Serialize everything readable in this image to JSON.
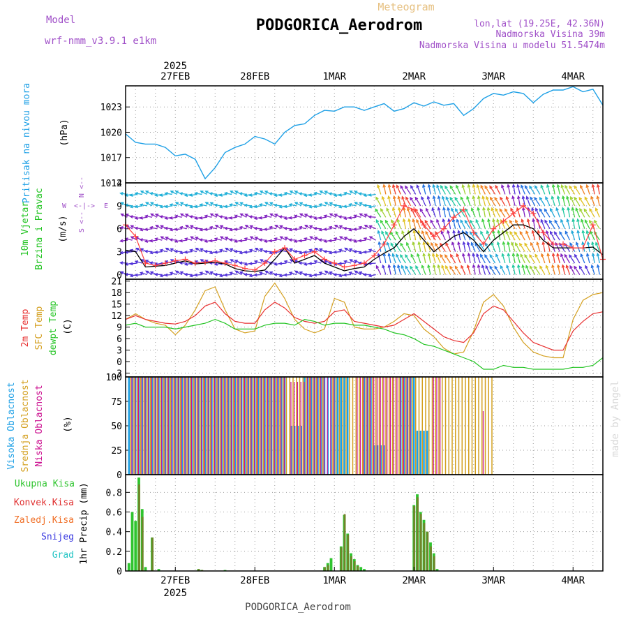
{
  "header": {
    "model_label": "Model",
    "model_name": "wrf-nmm_v3.9.1 e1km",
    "product": "Meteogram",
    "station": "PODGORICA_Aerodrom",
    "coords": "lon,lat (19.25E, 42.36N)",
    "elevation": "Nadmorska Visina 39m",
    "model_elevation": "Nadmorska Visina u modelu 51.5474m",
    "footer_station": "PODGORICA_Aerodrom",
    "watermark": "made by Angel"
  },
  "timeline": {
    "year": "2025",
    "date_labels": [
      "27FEB",
      "28FEB",
      "1MAR",
      "2MAR",
      "3MAR",
      "4MAR"
    ],
    "start_hour_offset": -15,
    "end_hour_offset": 129
  },
  "colors": {
    "pressure": "#1ea0e6",
    "wind_speed": "#ff4040",
    "gust": "#000000",
    "t2m": "#e83030",
    "sfc": "#d4a020",
    "dewpt": "#22c422",
    "high_cloud": "#1ea0e6",
    "mid_cloud": "#d4a020",
    "low_cloud": "#cc1090",
    "total_precip": "#2ec42e",
    "conv_precip": "#e03030",
    "frz_precip": "#f07028",
    "snow": "#3a3ae0",
    "hail": "#22c4c4"
  },
  "chart_data": [
    {
      "type": "line",
      "panel": "pressure",
      "ylabel": "Pritisak na nivou mora",
      "unit": "(hPa)",
      "ylim": [
        1014,
        1025.5
      ],
      "yticks": [
        1014,
        1017,
        1020,
        1023
      ],
      "grid": true,
      "x": [
        -15,
        -12,
        -9,
        -6,
        -3,
        0,
        3,
        6,
        9,
        12,
        15,
        18,
        21,
        24,
        27,
        30,
        33,
        36,
        39,
        42,
        45,
        48,
        51,
        54,
        57,
        60,
        63,
        66,
        69,
        72,
        75,
        78,
        81,
        84,
        87,
        90,
        93,
        96,
        99,
        102,
        105,
        108,
        111,
        114,
        117,
        120,
        123,
        126,
        129
      ],
      "series": [
        {
          "name": "Pritisak na nivou mora",
          "values": [
            1019.8,
            1018.8,
            1018.6,
            1018.6,
            1018.2,
            1017.2,
            1017.4,
            1016.8,
            1014.5,
            1015.8,
            1017.6,
            1018.2,
            1018.6,
            1019.5,
            1019.2,
            1018.6,
            1020.0,
            1020.8,
            1021.0,
            1022.0,
            1022.6,
            1022.5,
            1023.0,
            1023.0,
            1022.6,
            1023.0,
            1023.4,
            1022.5,
            1022.8,
            1023.5,
            1023.1,
            1023.6,
            1023.2,
            1023.4,
            1022.0,
            1022.8,
            1024.0,
            1024.6,
            1024.4,
            1024.8,
            1024.6,
            1023.5,
            1024.5,
            1025.0,
            1025.0,
            1025.4,
            1024.8,
            1025.1,
            1023.2
          ]
        }
      ]
    },
    {
      "type": "line",
      "panel": "wind",
      "ylabel": "10m Vjetar Brzina i Pravac",
      "unit": "(m/s)",
      "direction_legend": [
        "N",
        "W",
        "E",
        "S"
      ],
      "ylim": [
        -0.6,
        12
      ],
      "yticks": [
        0,
        3,
        6,
        9,
        12
      ],
      "grid": true,
      "x": [
        -15,
        -12,
        -9,
        -6,
        -3,
        0,
        3,
        6,
        9,
        12,
        15,
        18,
        21,
        24,
        27,
        30,
        33,
        36,
        39,
        42,
        45,
        48,
        51,
        54,
        57,
        60,
        63,
        66,
        69,
        72,
        75,
        78,
        81,
        84,
        87,
        90,
        93,
        96,
        99,
        102,
        105,
        108,
        111,
        114,
        117,
        120,
        123,
        126,
        129
      ],
      "series": [
        {
          "name": "speed",
          "values": [
            6.5,
            5.0,
            1.5,
            1.2,
            1.5,
            1.8,
            2.0,
            1.5,
            1.6,
            1.8,
            1.5,
            1.2,
            0.8,
            0.6,
            1.5,
            3.0,
            3.5,
            2.0,
            2.5,
            3.0,
            2.0,
            1.5,
            1.0,
            1.2,
            1.5,
            2.5,
            4.0,
            6.5,
            9.0,
            8.5,
            6.5,
            5.0,
            6.0,
            7.5,
            8.5,
            5.5,
            4.0,
            6.0,
            7.0,
            8.0,
            9.0,
            8.0,
            5.5,
            4.0,
            4.0,
            3.5,
            3.5,
            6.5,
            2.0
          ]
        },
        {
          "name": "gust",
          "values": [
            3.2,
            3.0,
            1.0,
            1.1,
            1.2,
            1.5,
            1.8,
            1.4,
            1.5,
            1.6,
            1.4,
            0.8,
            0.5,
            0.4,
            0.6,
            2.0,
            3.5,
            1.5,
            2.0,
            2.5,
            1.5,
            1.0,
            0.5,
            0.8,
            1.0,
            2.0,
            2.8,
            3.5,
            5.0,
            6.0,
            4.5,
            3.0,
            4.0,
            5.0,
            5.5,
            4.5,
            3.0,
            4.5,
            5.5,
            6.5,
            6.5,
            6.0,
            4.5,
            3.5,
            3.5,
            3.5,
            3.5,
            3.6,
            2.6
          ]
        }
      ]
    },
    {
      "type": "line",
      "panel": "temperature",
      "ylabel": "2m Temp / SFC Temp / dewpt Temp",
      "unit": "(C)",
      "ylim": [
        -4,
        21.5
      ],
      "yticks": [
        -3,
        0,
        3,
        6,
        9,
        12,
        15,
        18,
        21
      ],
      "grid": true,
      "x": [
        -15,
        -12,
        -9,
        -6,
        -3,
        0,
        3,
        6,
        9,
        12,
        15,
        18,
        21,
        24,
        27,
        30,
        33,
        36,
        39,
        42,
        45,
        48,
        51,
        54,
        57,
        60,
        63,
        66,
        69,
        72,
        75,
        78,
        81,
        84,
        87,
        90,
        93,
        96,
        99,
        102,
        105,
        108,
        111,
        114,
        117,
        120,
        123,
        126,
        129
      ],
      "series": [
        {
          "name": "2m Temp",
          "values": [
            11.0,
            12.0,
            11.0,
            10.5,
            10.0,
            9.8,
            10.5,
            12.0,
            14.5,
            15.5,
            12.5,
            10.5,
            10.0,
            10.0,
            13.5,
            15.5,
            14.0,
            11.5,
            10.5,
            10.0,
            10.5,
            13.0,
            13.5,
            10.5,
            10.0,
            9.5,
            9.0,
            9.5,
            11.0,
            12.5,
            10.5,
            8.5,
            6.5,
            5.5,
            5.0,
            7.5,
            12.5,
            14.5,
            13.5,
            10.5,
            7.5,
            5.0,
            4.0,
            3.0,
            3.0,
            8.0,
            10.5,
            12.5,
            13.0
          ]
        },
        {
          "name": "SFC Temp",
          "values": [
            11.0,
            12.5,
            11.0,
            10.0,
            9.5,
            7.0,
            9.5,
            13.5,
            18.5,
            19.5,
            13.5,
            8.5,
            7.5,
            8.0,
            17.0,
            20.5,
            16.5,
            11.0,
            8.5,
            7.5,
            8.5,
            16.5,
            15.5,
            9.0,
            8.5,
            8.5,
            9.0,
            10.5,
            12.5,
            12.0,
            8.5,
            6.5,
            3.5,
            2.0,
            2.5,
            8.0,
            15.5,
            17.5,
            14.5,
            9.0,
            5.0,
            2.5,
            1.5,
            1.0,
            1.0,
            11.0,
            16.0,
            17.5,
            18.0
          ]
        },
        {
          "name": "dewpt Temp",
          "values": [
            9.5,
            10.0,
            9.0,
            9.0,
            9.0,
            8.5,
            9.0,
            9.5,
            10.0,
            11.0,
            10.0,
            8.5,
            8.5,
            8.5,
            9.5,
            10.0,
            10.0,
            9.5,
            11.0,
            10.5,
            9.5,
            10.0,
            10.0,
            9.5,
            9.5,
            9.0,
            8.5,
            7.5,
            7.0,
            6.0,
            4.5,
            4.0,
            3.0,
            2.0,
            1.0,
            0.0,
            -2.0,
            -2.0,
            -1.0,
            -1.5,
            -1.5,
            -2.0,
            -2.0,
            -2.0,
            -2.0,
            -1.5,
            -1.5,
            -1.0,
            1.0
          ]
        }
      ]
    },
    {
      "type": "bar",
      "panel": "clouds",
      "ylabel": "Visoka Oblacnost / Srednja Oblacnost / Niska Oblacnost",
      "unit": "(%)",
      "ylim": [
        0,
        100
      ],
      "yticks": [
        0,
        25,
        50,
        75,
        100
      ],
      "grid": true,
      "segments": [
        {
          "name": "Visoka Oblacnost",
          "ranges": [
            [
              -14,
              33,
              100
            ],
            [
              35,
              38,
              50
            ],
            [
              39,
              52,
              100
            ],
            [
              57,
              59,
              100
            ],
            [
              60,
              63,
              30
            ],
            [
              68,
              72,
              100
            ],
            [
              73,
              76,
              45
            ]
          ]
        },
        {
          "name": "Srednja Oblacnost",
          "ranges": [
            [
              -14,
              37,
              100
            ],
            [
              38,
              44,
              100
            ],
            [
              47,
              76,
              100
            ],
            [
              76,
              95,
              100
            ]
          ]
        },
        {
          "name": "Niska Oblacnost",
          "ranges": [
            [
              -14,
              32,
              100
            ],
            [
              34,
              38,
              95
            ],
            [
              39,
              47,
              100
            ],
            [
              54,
              66,
              100
            ],
            [
              67,
              70,
              100
            ],
            [
              77,
              79,
              100
            ],
            [
              92,
              92.5,
              65
            ]
          ]
        }
      ]
    },
    {
      "type": "bar",
      "panel": "precip",
      "ylabel": "1hr Precip",
      "unit": "(mm)",
      "legend": [
        "Ukupna Kisa",
        "Konvek.Kisa",
        "Zaledj.Kisa",
        "Snijeg",
        "Grad"
      ],
      "ylim": [
        0,
        0.98
      ],
      "yticks": [
        0,
        0.2,
        0.4,
        0.6,
        0.8
      ],
      "grid": true,
      "x": [
        -14,
        -13,
        -12,
        -11,
        -10,
        -9,
        -8,
        -7,
        -5,
        -4,
        7,
        8,
        15,
        45,
        46,
        47,
        48,
        49,
        50,
        51,
        52,
        53,
        54,
        55,
        56,
        57,
        72,
        73,
        74,
        75,
        76,
        77,
        78,
        79,
        80,
        81,
        82
      ],
      "total": [
        0.08,
        0.6,
        0.51,
        0.95,
        0.63,
        0.04,
        0.0,
        0.34,
        0.02,
        0.0,
        0.02,
        0.01,
        0.01,
        0.04,
        0.08,
        0.13,
        0.0,
        0.0,
        0.25,
        0.57,
        0.38,
        0.18,
        0.12,
        0.06,
        0.04,
        0.02,
        0.67,
        0.78,
        0.6,
        0.52,
        0.4,
        0.29,
        0.18,
        0.02,
        0.0,
        0.0,
        0.0
      ],
      "convective": [
        0.0,
        0.0,
        0.0,
        0.88,
        0.55,
        0.0,
        0.0,
        0.34,
        0.0,
        0.0,
        0.02,
        0.01,
        0.0,
        0.04,
        0.06,
        0.0,
        0.0,
        0.0,
        0.24,
        0.58,
        0.37,
        0.15,
        0.1,
        0.05,
        0.0,
        0.0,
        0.66,
        0.75,
        0.58,
        0.49,
        0.4,
        0.25,
        0.15,
        0.0,
        0.0,
        0.0,
        0.0
      ]
    }
  ]
}
